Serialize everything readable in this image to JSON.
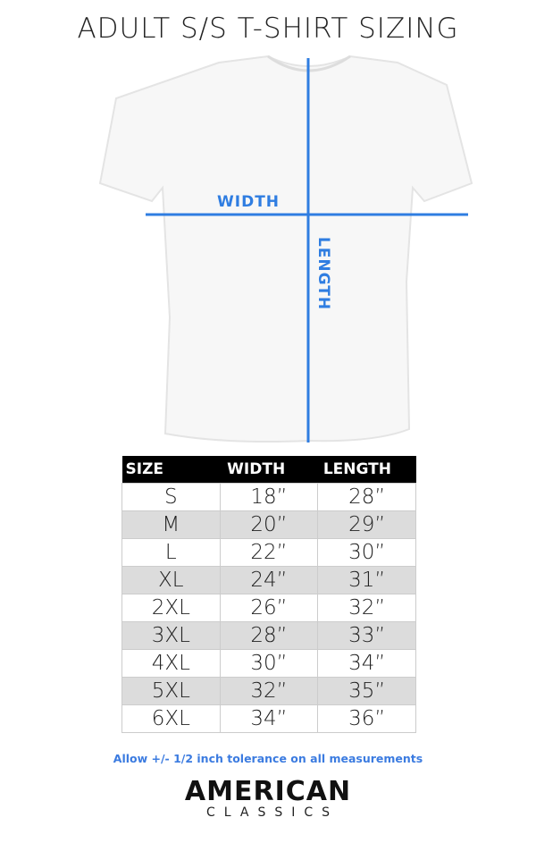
{
  "title": "ADULT S/S T-SHIRT SIZING",
  "diagram": {
    "width_label": "WIDTH",
    "length_label": "LENGTH",
    "line_color": "#2f7de1"
  },
  "table": {
    "headers": [
      "SIZE",
      "WIDTH",
      "LENGTH"
    ],
    "rows": [
      [
        "S",
        "18”",
        "28”"
      ],
      [
        "M",
        "20”",
        "29”"
      ],
      [
        "L",
        "22”",
        "30”"
      ],
      [
        "XL",
        "24”",
        "31”"
      ],
      [
        "2XL",
        "26”",
        "32”"
      ],
      [
        "3XL",
        "28”",
        "33”"
      ],
      [
        "4XL",
        "30”",
        "34”"
      ],
      [
        "5XL",
        "32”",
        "35”"
      ],
      [
        "6XL",
        "34”",
        "36”"
      ]
    ]
  },
  "note": "Allow +/- 1/2 inch tolerance on all measurements",
  "brand": {
    "line1": "AMERICAN",
    "line2": "CLASSICS"
  }
}
